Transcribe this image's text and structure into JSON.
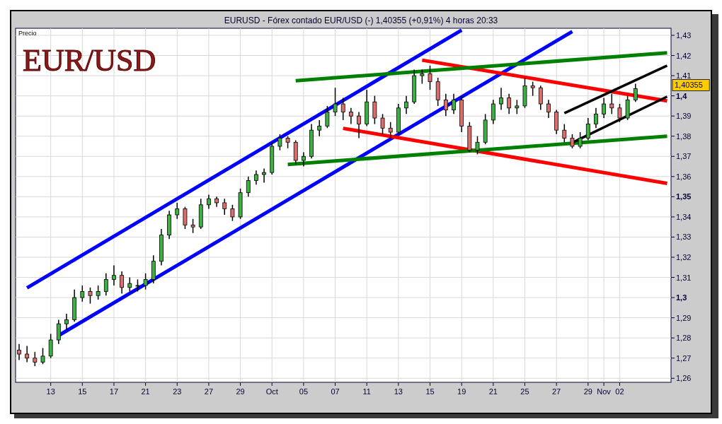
{
  "chart_data": {
    "type": "candlestick",
    "title": "EURUSD - Fórex contado EUR/USD (-)   1,40355 (+0,91%)   4 horas  20:33",
    "subtitle": "EUR/USD",
    "ylabel": "Precio",
    "annotations": [
      "1,40355"
    ],
    "categories": [
      null,
      null,
      null,
      null,
      "13",
      null,
      null,
      null,
      "15",
      null,
      null,
      null,
      "17",
      null,
      null,
      null,
      "21",
      null,
      null,
      null,
      "23",
      null,
      null,
      null,
      "27",
      null,
      null,
      null,
      "29",
      null,
      null,
      null,
      "Oct",
      null,
      null,
      null,
      "05",
      null,
      null,
      null,
      "07",
      null,
      null,
      null,
      "11",
      null,
      null,
      null,
      "13",
      null,
      null,
      null,
      "15",
      null,
      null,
      null,
      "19",
      null,
      null,
      null,
      "21",
      null,
      null,
      null,
      "25",
      null,
      null,
      null,
      "27",
      null,
      null,
      null,
      "29",
      null,
      "Nov",
      null,
      "02",
      null,
      null,
      null,
      null,
      null,
      null
    ],
    "ohlc": [
      [
        1.274,
        1.277,
        1.269,
        1.272
      ],
      [
        1.272,
        1.276,
        1.268,
        1.27
      ],
      [
        1.27,
        1.273,
        1.266,
        1.268
      ],
      [
        1.268,
        1.275,
        1.267,
        1.271
      ],
      [
        1.271,
        1.282,
        1.27,
        1.279
      ],
      [
        1.279,
        1.289,
        1.277,
        1.287
      ],
      [
        1.287,
        1.292,
        1.284,
        1.289
      ],
      [
        1.289,
        1.304,
        1.288,
        1.3
      ],
      [
        1.3,
        1.306,
        1.298,
        1.303
      ],
      [
        1.303,
        1.305,
        1.297,
        1.301
      ],
      [
        1.301,
        1.306,
        1.299,
        1.303
      ],
      [
        1.303,
        1.312,
        1.301,
        1.309
      ],
      [
        1.309,
        1.316,
        1.306,
        1.311
      ],
      [
        1.311,
        1.313,
        1.302,
        1.305
      ],
      [
        1.305,
        1.31,
        1.303,
        1.307
      ],
      [
        1.306,
        1.309,
        1.303,
        1.306
      ],
      [
        1.306,
        1.312,
        1.304,
        1.309
      ],
      [
        1.309,
        1.321,
        1.307,
        1.318
      ],
      [
        1.318,
        1.334,
        1.316,
        1.331
      ],
      [
        1.331,
        1.343,
        1.329,
        1.341
      ],
      [
        1.341,
        1.347,
        1.339,
        1.344
      ],
      [
        1.344,
        1.345,
        1.334,
        1.336
      ],
      [
        1.336,
        1.339,
        1.332,
        1.335
      ],
      [
        1.335,
        1.349,
        1.334,
        1.346
      ],
      [
        1.346,
        1.351,
        1.344,
        1.349
      ],
      [
        1.349,
        1.35,
        1.345,
        1.347
      ],
      [
        1.347,
        1.349,
        1.341,
        1.344
      ],
      [
        1.344,
        1.346,
        1.338,
        1.34
      ],
      [
        1.34,
        1.354,
        1.339,
        1.352
      ],
      [
        1.352,
        1.36,
        1.35,
        1.358
      ],
      [
        1.358,
        1.363,
        1.356,
        1.361
      ],
      [
        1.361,
        1.364,
        1.357,
        1.362
      ],
      [
        1.362,
        1.377,
        1.361,
        1.375
      ],
      [
        1.375,
        1.381,
        1.373,
        1.379
      ],
      [
        1.379,
        1.38,
        1.374,
        1.377
      ],
      [
        1.377,
        1.378,
        1.366,
        1.368
      ],
      [
        1.368,
        1.372,
        1.365,
        1.37
      ],
      [
        1.37,
        1.386,
        1.369,
        1.383
      ],
      [
        1.383,
        1.388,
        1.38,
        1.385
      ],
      [
        1.385,
        1.395,
        1.384,
        1.392
      ],
      [
        1.392,
        1.404,
        1.39,
        1.396
      ],
      [
        1.396,
        1.399,
        1.388,
        1.392
      ],
      [
        1.392,
        1.394,
        1.386,
        1.39
      ],
      [
        1.39,
        1.392,
        1.379,
        1.386
      ],
      [
        1.386,
        1.403,
        1.385,
        1.397
      ],
      [
        1.397,
        1.4,
        1.386,
        1.389
      ],
      [
        1.389,
        1.391,
        1.381,
        1.384
      ],
      [
        1.384,
        1.387,
        1.379,
        1.382
      ],
      [
        1.382,
        1.396,
        1.381,
        1.394
      ],
      [
        1.394,
        1.4,
        1.391,
        1.397
      ],
      [
        1.397,
        1.413,
        1.396,
        1.41
      ],
      [
        1.41,
        1.413,
        1.406,
        1.411
      ],
      [
        1.411,
        1.415,
        1.403,
        1.407
      ],
      [
        1.407,
        1.409,
        1.395,
        1.398
      ],
      [
        1.398,
        1.401,
        1.39,
        1.393
      ],
      [
        1.393,
        1.401,
        1.391,
        1.398
      ],
      [
        1.398,
        1.4,
        1.382,
        1.385
      ],
      [
        1.385,
        1.387,
        1.372,
        1.373
      ],
      [
        1.373,
        1.38,
        1.371,
        1.377
      ],
      [
        1.377,
        1.391,
        1.376,
        1.388
      ],
      [
        1.388,
        1.398,
        1.386,
        1.396
      ],
      [
        1.396,
        1.404,
        1.393,
        1.399
      ],
      [
        1.399,
        1.401,
        1.391,
        1.394
      ],
      [
        1.394,
        1.398,
        1.391,
        1.395
      ],
      [
        1.395,
        1.409,
        1.394,
        1.405
      ],
      [
        1.405,
        1.407,
        1.4,
        1.404
      ],
      [
        1.404,
        1.405,
        1.393,
        1.396
      ],
      [
        1.396,
        1.398,
        1.389,
        1.392
      ],
      [
        1.392,
        1.393,
        1.381,
        1.383
      ],
      [
        1.383,
        1.386,
        1.377,
        1.379
      ],
      [
        1.379,
        1.381,
        1.374,
        1.375
      ],
      [
        1.375,
        1.382,
        1.374,
        1.379
      ],
      [
        1.379,
        1.389,
        1.378,
        1.386
      ],
      [
        1.386,
        1.394,
        1.384,
        1.391
      ],
      [
        1.391,
        1.399,
        1.389,
        1.396
      ],
      [
        1.396,
        1.401,
        1.391,
        1.394
      ],
      [
        1.394,
        1.396,
        1.387,
        1.389
      ],
      [
        1.389,
        1.4,
        1.388,
        1.398
      ],
      [
        1.398,
        1.406,
        1.397,
        1.40355
      ],
      null,
      null,
      null,
      null
    ],
    "series": [
      {
        "type": "line",
        "color": "#0000ff",
        "values": [
          null,
          1.3048,
          null,
          null,
          null,
          null,
          null,
          null,
          null,
          null,
          null,
          null,
          null,
          null,
          null,
          null,
          null,
          null,
          null,
          null,
          null,
          null,
          null,
          null,
          null,
          null,
          null,
          null,
          null,
          null,
          null,
          null,
          null,
          null,
          null,
          null,
          null,
          null,
          null,
          null,
          null,
          null,
          null,
          null,
          null,
          null,
          null,
          null,
          null,
          null,
          null,
          null,
          null,
          null,
          null,
          null,
          1.4326,
          null,
          null,
          null,
          null,
          null,
          null,
          null,
          null,
          null,
          null,
          null,
          null,
          null,
          null,
          null,
          null,
          null,
          null,
          null,
          null,
          null,
          null,
          null,
          null,
          null,
          null
        ]
      },
      {
        "type": "line",
        "color": "#0000ff",
        "values": [
          null,
          null,
          null,
          null,
          null,
          1.2812,
          null,
          null,
          null,
          null,
          null,
          null,
          null,
          null,
          null,
          null,
          null,
          null,
          null,
          null,
          null,
          null,
          null,
          null,
          null,
          null,
          null,
          null,
          null,
          null,
          null,
          null,
          null,
          null,
          null,
          null,
          null,
          null,
          null,
          null,
          null,
          null,
          null,
          null,
          null,
          null,
          null,
          null,
          null,
          null,
          null,
          null,
          null,
          null,
          null,
          null,
          null,
          null,
          null,
          null,
          null,
          null,
          null,
          null,
          null,
          null,
          null,
          null,
          null,
          null,
          1.4319,
          null,
          null,
          null,
          null,
          null,
          null,
          null,
          null,
          null,
          null,
          null,
          null
        ]
      },
      {
        "type": "line",
        "color": "#ff0000",
        "values": [
          null,
          null,
          null,
          null,
          null,
          null,
          null,
          null,
          null,
          null,
          null,
          null,
          null,
          null,
          null,
          null,
          null,
          null,
          null,
          null,
          null,
          null,
          null,
          null,
          null,
          null,
          null,
          null,
          null,
          null,
          null,
          null,
          null,
          null,
          null,
          null,
          null,
          null,
          null,
          null,
          null,
          null,
          null,
          null,
          null,
          null,
          null,
          null,
          null,
          null,
          null,
          1.4177,
          null,
          null,
          null,
          null,
          null,
          null,
          null,
          null,
          null,
          null,
          null,
          null,
          null,
          null,
          null,
          null,
          null,
          null,
          null,
          null,
          null,
          null,
          null,
          null,
          null,
          null,
          null,
          null,
          null,
          null,
          1.3975
        ]
      },
      {
        "type": "line",
        "color": "#ff0000",
        "values": [
          null,
          null,
          null,
          null,
          null,
          null,
          null,
          null,
          null,
          null,
          null,
          null,
          null,
          null,
          null,
          null,
          null,
          null,
          null,
          null,
          null,
          null,
          null,
          null,
          null,
          null,
          null,
          null,
          null,
          null,
          null,
          null,
          null,
          null,
          null,
          null,
          null,
          null,
          null,
          null,
          null,
          1.3839,
          null,
          null,
          null,
          null,
          null,
          null,
          null,
          null,
          null,
          null,
          null,
          null,
          null,
          null,
          null,
          null,
          null,
          null,
          null,
          null,
          null,
          null,
          null,
          null,
          null,
          null,
          null,
          null,
          null,
          null,
          null,
          null,
          null,
          null,
          null,
          null,
          null,
          null,
          null,
          null,
          1.3566
        ]
      },
      {
        "type": "line",
        "color": "#008000",
        "values": [
          null,
          null,
          null,
          null,
          null,
          null,
          null,
          null,
          null,
          null,
          null,
          null,
          null,
          null,
          null,
          null,
          null,
          null,
          null,
          null,
          null,
          null,
          null,
          null,
          null,
          null,
          null,
          null,
          null,
          null,
          null,
          null,
          null,
          null,
          null,
          1.4075,
          null,
          null,
          null,
          null,
          null,
          null,
          null,
          null,
          null,
          null,
          null,
          null,
          null,
          null,
          null,
          null,
          null,
          null,
          null,
          null,
          null,
          null,
          null,
          null,
          null,
          null,
          null,
          null,
          null,
          null,
          null,
          null,
          null,
          null,
          null,
          null,
          null,
          null,
          null,
          null,
          null,
          null,
          null,
          null,
          null,
          null,
          1.4213
        ]
      },
      {
        "type": "line",
        "color": "#008000",
        "values": [
          null,
          null,
          null,
          null,
          null,
          null,
          null,
          null,
          null,
          null,
          null,
          null,
          null,
          null,
          null,
          null,
          null,
          null,
          null,
          null,
          null,
          null,
          null,
          null,
          null,
          null,
          null,
          null,
          null,
          null,
          null,
          null,
          null,
          null,
          1.366,
          null,
          null,
          null,
          null,
          null,
          null,
          null,
          null,
          null,
          null,
          null,
          null,
          null,
          null,
          null,
          null,
          null,
          null,
          null,
          null,
          null,
          null,
          null,
          null,
          null,
          null,
          null,
          null,
          null,
          null,
          null,
          null,
          null,
          null,
          null,
          null,
          null,
          null,
          null,
          null,
          null,
          null,
          null,
          null,
          null,
          null,
          null,
          1.38
        ]
      },
      {
        "type": "line",
        "color": "#000000",
        "values": [
          null,
          null,
          null,
          null,
          null,
          null,
          null,
          null,
          null,
          null,
          null,
          null,
          null,
          null,
          null,
          null,
          null,
          null,
          null,
          null,
          null,
          null,
          null,
          null,
          null,
          null,
          null,
          null,
          null,
          null,
          null,
          null,
          null,
          null,
          null,
          null,
          null,
          null,
          null,
          null,
          null,
          null,
          null,
          null,
          null,
          null,
          null,
          null,
          null,
          null,
          null,
          null,
          null,
          null,
          null,
          null,
          null,
          null,
          null,
          null,
          null,
          null,
          null,
          null,
          null,
          null,
          null,
          null,
          null,
          1.3914,
          null,
          null,
          null,
          null,
          null,
          null,
          null,
          null,
          null,
          null,
          null,
          null,
          1.415
        ]
      },
      {
        "type": "line",
        "color": "#000000",
        "values": [
          null,
          null,
          null,
          null,
          null,
          null,
          null,
          null,
          null,
          null,
          null,
          null,
          null,
          null,
          null,
          null,
          null,
          null,
          null,
          null,
          null,
          null,
          null,
          null,
          null,
          null,
          null,
          null,
          null,
          null,
          null,
          null,
          null,
          null,
          null,
          null,
          null,
          null,
          null,
          null,
          null,
          null,
          null,
          null,
          null,
          null,
          null,
          null,
          null,
          null,
          null,
          null,
          null,
          null,
          null,
          null,
          null,
          null,
          null,
          null,
          null,
          null,
          null,
          null,
          null,
          null,
          null,
          null,
          null,
          null,
          1.3768,
          null,
          null,
          null,
          null,
          null,
          null,
          null,
          null,
          null,
          null,
          null,
          1.3996
        ]
      }
    ],
    "ylim": [
      1.258,
      1.4335
    ],
    "yticks": [
      {
        "value": 1.26,
        "label": "1,26"
      },
      {
        "value": 1.27,
        "label": "1,27"
      },
      {
        "value": 1.28,
        "label": "1,28"
      },
      {
        "value": 1.29,
        "label": "1,29"
      },
      {
        "value": 1.3,
        "label": "1,3"
      },
      {
        "value": 1.31,
        "label": "1,31"
      },
      {
        "value": 1.32,
        "label": "1,32"
      },
      {
        "value": 1.33,
        "label": "1,33"
      },
      {
        "value": 1.34,
        "label": "1,34"
      },
      {
        "value": 1.35,
        "label": "1,35"
      },
      {
        "value": 1.36,
        "label": "1,36"
      },
      {
        "value": 1.37,
        "label": "1,37"
      },
      {
        "value": 1.38,
        "label": "1,38"
      },
      {
        "value": 1.39,
        "label": "1,39"
      },
      {
        "value": 1.4,
        "label": "1,4"
      },
      {
        "value": 1.41,
        "label": "1,41"
      },
      {
        "value": 1.42,
        "label": "1,42"
      },
      {
        "value": 1.43,
        "label": "1,43"
      }
    ],
    "grid": true
  }
}
